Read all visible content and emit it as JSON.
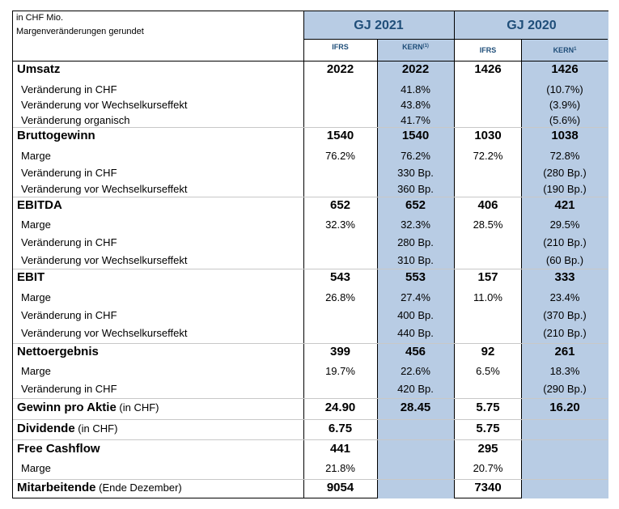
{
  "header": {
    "unit_note": "in CHF Mio.",
    "margin_note": "Margenveränderungen gerundet",
    "year_2021": "GJ 2021",
    "year_2020": "GJ 2020",
    "ifrs_2021": "IFRS",
    "kern_2021": "KERN",
    "kern_2021_sup": "(1)",
    "ifrs_2020": "IFRS",
    "kern_2020": "KERN",
    "kern_2020_sup": "1"
  },
  "colors": {
    "highlight": "#b8cce4",
    "header_text": "#1f4e79"
  },
  "rows": [
    {
      "label": "Umsatz",
      "unit": "",
      "ifrs21": "2022",
      "kern21": "2022",
      "ifrs20": "1426",
      "kern20": "1426"
    },
    {
      "label": "Veränderung in CHF",
      "kern21": "41.8%",
      "kern20": "(10.7%)"
    },
    {
      "label": "Veränderung vor Wechselkurseffekt",
      "kern21": "43.8%",
      "kern20": "(3.9%)"
    },
    {
      "label": "Veränderung organisch",
      "kern21": "41.7%",
      "kern20": "(5.6%)"
    },
    {
      "label": "Bruttogewinn",
      "unit": "",
      "ifrs21": "1540",
      "kern21": "1540",
      "ifrs20": "1030",
      "kern20": "1038"
    },
    {
      "label": "Marge",
      "ifrs21": "76.2%",
      "kern21": "76.2%",
      "ifrs20": "72.2%",
      "kern20": "72.8%"
    },
    {
      "label": "Veränderung in CHF",
      "kern21": "330 Bp.",
      "kern20": "(280 Bp.)"
    },
    {
      "label": "Veränderung vor Wechselkurseffekt",
      "kern21": "360 Bp.",
      "kern20": "(190 Bp.)"
    },
    {
      "label": "EBITDA",
      "unit": "",
      "ifrs21": "652",
      "kern21": "652",
      "ifrs20": "406",
      "kern20": "421"
    },
    {
      "label": "Marge",
      "ifrs21": "32.3%",
      "kern21": "32.3%",
      "ifrs20": "28.5%",
      "kern20": "29.5%"
    },
    {
      "label": "Veränderung in CHF",
      "kern21": "280 Bp.",
      "kern20": "(210 Bp.)"
    },
    {
      "label": "Veränderung vor Wechselkurseffekt",
      "kern21": "310 Bp.",
      "kern20": "(60 Bp.)"
    },
    {
      "label": "EBIT",
      "unit": "",
      "ifrs21": "543",
      "kern21": "553",
      "ifrs20": "157",
      "kern20": "333"
    },
    {
      "label": "Marge",
      "ifrs21": "26.8%",
      "kern21": "27.4%",
      "ifrs20": "11.0%",
      "kern20": "23.4%"
    },
    {
      "label": "Veränderung in CHF",
      "kern21": "400 Bp.",
      "kern20": "(370 Bp.)"
    },
    {
      "label": "Veränderung vor Wechselkurseffekt",
      "kern21": "440 Bp.",
      "kern20": "(210 Bp.)"
    },
    {
      "label": "Nettoergebnis",
      "unit": "",
      "ifrs21": "399",
      "kern21": "456",
      "ifrs20": "92",
      "kern20": "261"
    },
    {
      "label": "Marge",
      "ifrs21": "19.7%",
      "kern21": "22.6%",
      "ifrs20": "6.5%",
      "kern20": "18.3%"
    },
    {
      "label": "Veränderung in CHF",
      "kern21": "420 Bp.",
      "kern20": "(290 Bp.)"
    },
    {
      "label": "Gewinn pro Aktie",
      "unit": "(in CHF)",
      "ifrs21": "24.90",
      "kern21": "28.45",
      "ifrs20": "5.75",
      "kern20": "16.20"
    },
    {
      "label": "Dividende",
      "unit": "(in CHF)",
      "ifrs21": "6.75",
      "ifrs20": "5.75"
    },
    {
      "label": "Free Cashflow",
      "unit": "",
      "ifrs21": "441",
      "ifrs20": "295"
    },
    {
      "label": "Marge",
      "ifrs21": "21.8%",
      "ifrs20": "20.7%"
    },
    {
      "label": "Mitarbeitende",
      "unit": "(Ende Dezember)",
      "ifrs21": "9054",
      "ifrs20": "7340"
    }
  ]
}
